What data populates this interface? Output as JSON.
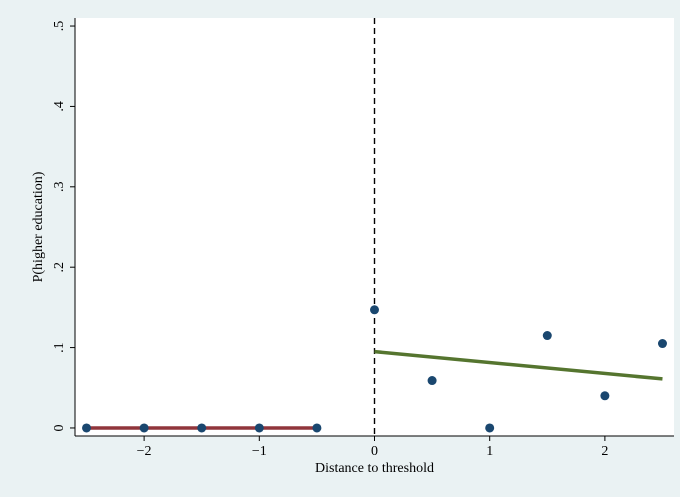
{
  "chart_data": {
    "type": "scatter",
    "title": "",
    "xlabel": "Distance to threshold",
    "ylabel": "P(higher education)",
    "xlim": [
      -2.6,
      2.6
    ],
    "ylim": [
      -0.01,
      0.51
    ],
    "x_ticks": [
      -2,
      -1,
      0,
      1,
      2
    ],
    "x_tick_labels": [
      "−2",
      "−1",
      "0",
      "1",
      "2"
    ],
    "y_ticks": [
      0,
      0.1,
      0.2,
      0.3,
      0.4,
      0.5
    ],
    "y_tick_labels": [
      "0",
      ".1",
      ".2",
      ".3",
      ".4",
      ".5"
    ],
    "grid": false,
    "threshold_line": {
      "x": 0,
      "style": "dashed",
      "color": "#000000"
    },
    "series": [
      {
        "type": "scatter",
        "color": "#1a476f",
        "x": [
          -2.5,
          -2,
          -1.5,
          -1,
          -0.5,
          0,
          0.5,
          1,
          1.5,
          2,
          2.5
        ],
        "y": [
          0,
          0,
          0,
          0,
          0,
          0.147,
          0.059,
          0,
          0.115,
          0.04,
          0.105
        ]
      },
      {
        "type": "line",
        "color": "#90353b",
        "x": [
          -2.5,
          -0.5
        ],
        "y": [
          0,
          0
        ]
      },
      {
        "type": "line",
        "color": "#55752f",
        "x": [
          0,
          2.5
        ],
        "y": [
          0.095,
          0.061
        ]
      }
    ]
  }
}
